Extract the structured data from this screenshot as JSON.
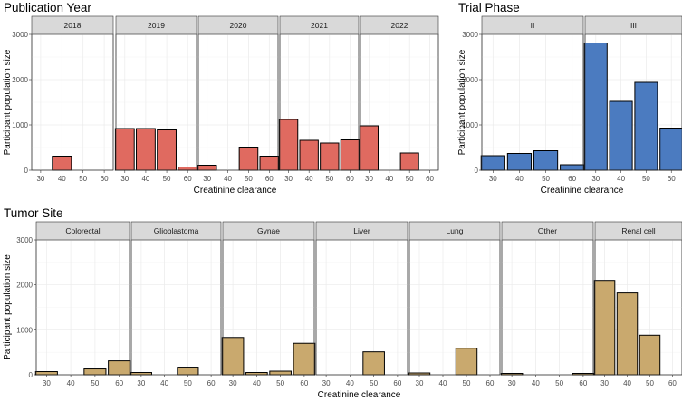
{
  "chart_data": [
    {
      "type": "bar",
      "title": "Publication Year",
      "xlabel": "Creatinine clearance",
      "ylabel": "Participant population size",
      "ylim": [
        0,
        3000
      ],
      "yticks": [
        0,
        1000,
        2000,
        3000
      ],
      "xticks": [
        30,
        40,
        50,
        60
      ],
      "color": "#E06A60",
      "panels": [
        {
          "label": "2018",
          "bars": [
            {
              "x": 40,
              "value": 310
            }
          ]
        },
        {
          "label": "2019",
          "bars": [
            {
              "x": 30,
              "value": 920
            },
            {
              "x": 40,
              "value": 920
            },
            {
              "x": 50,
              "value": 890
            },
            {
              "x": 60,
              "value": 70
            }
          ]
        },
        {
          "label": "2020",
          "bars": [
            {
              "x": 30,
              "value": 110
            },
            {
              "x": 50,
              "value": 510
            },
            {
              "x": 60,
              "value": 310
            }
          ]
        },
        {
          "label": "2021",
          "bars": [
            {
              "x": 30,
              "value": 1120
            },
            {
              "x": 40,
              "value": 660
            },
            {
              "x": 50,
              "value": 600
            },
            {
              "x": 60,
              "value": 670
            }
          ]
        },
        {
          "label": "2022",
          "bars": [
            {
              "x": 30,
              "value": 980
            },
            {
              "x": 50,
              "value": 380
            }
          ]
        }
      ]
    },
    {
      "type": "bar",
      "title": "Trial Phase",
      "xlabel": "Creatinine clearance",
      "ylabel": "Participant population size",
      "ylim": [
        0,
        3000
      ],
      "yticks": [
        0,
        1000,
        2000,
        3000
      ],
      "xticks": [
        30,
        40,
        50,
        60
      ],
      "color": "#4B7BC0",
      "panels": [
        {
          "label": "II",
          "bars": [
            {
              "x": 30,
              "value": 320
            },
            {
              "x": 40,
              "value": 370
            },
            {
              "x": 50,
              "value": 430
            },
            {
              "x": 60,
              "value": 120
            }
          ]
        },
        {
          "label": "III",
          "bars": [
            {
              "x": 30,
              "value": 2810
            },
            {
              "x": 40,
              "value": 1520
            },
            {
              "x": 50,
              "value": 1940
            },
            {
              "x": 60,
              "value": 930
            }
          ]
        }
      ]
    },
    {
      "type": "bar",
      "title": "Tumor Site",
      "xlabel": "Creatinine clearance",
      "ylabel": "Participant population size",
      "ylim": [
        0,
        3000
      ],
      "yticks": [
        0,
        1000,
        2000,
        3000
      ],
      "xticks": [
        30,
        40,
        50,
        60
      ],
      "color": "#C9A96E",
      "panels": [
        {
          "label": "Colorectal",
          "bars": [
            {
              "x": 30,
              "value": 70
            },
            {
              "x": 50,
              "value": 130
            },
            {
              "x": 60,
              "value": 310
            }
          ]
        },
        {
          "label": "Glioblastoma",
          "bars": [
            {
              "x": 30,
              "value": 50
            },
            {
              "x": 50,
              "value": 170
            }
          ]
        },
        {
          "label": "Gynae",
          "bars": [
            {
              "x": 30,
              "value": 830
            },
            {
              "x": 40,
              "value": 50
            },
            {
              "x": 50,
              "value": 80
            },
            {
              "x": 60,
              "value": 700
            }
          ]
        },
        {
          "label": "Liver",
          "bars": [
            {
              "x": 50,
              "value": 510
            }
          ]
        },
        {
          "label": "Lung",
          "bars": [
            {
              "x": 30,
              "value": 40
            },
            {
              "x": 50,
              "value": 590
            }
          ]
        },
        {
          "label": "Other",
          "bars": [
            {
              "x": 30,
              "value": 30
            },
            {
              "x": 60,
              "value": 30
            }
          ]
        },
        {
          "label": "Renal cell",
          "bars": [
            {
              "x": 30,
              "value": 2100
            },
            {
              "x": 40,
              "value": 1820
            },
            {
              "x": 50,
              "value": 880
            }
          ]
        }
      ]
    }
  ]
}
